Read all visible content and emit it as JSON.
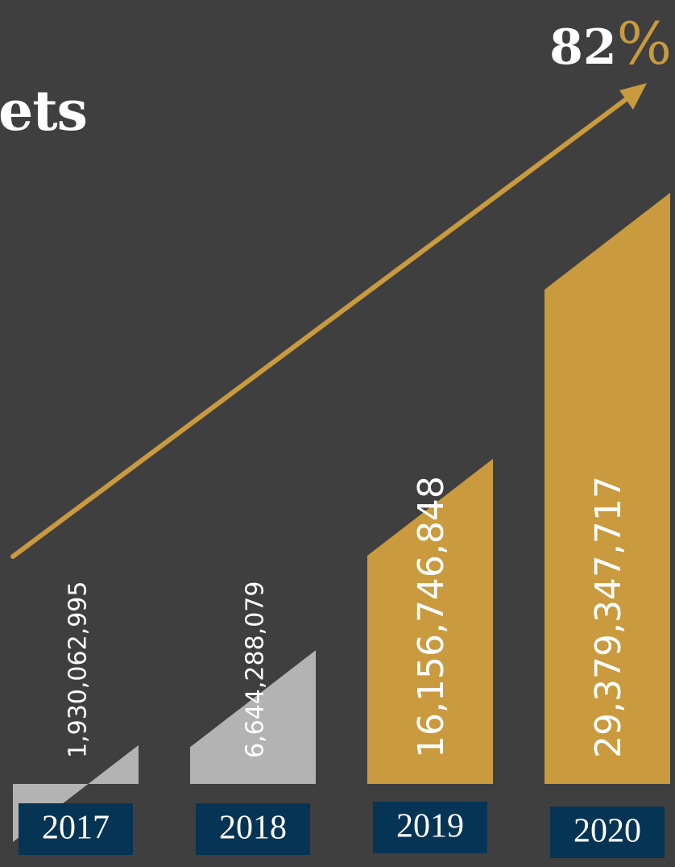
{
  "title_fragment": "ets",
  "growth": {
    "value": "82",
    "unit": "%"
  },
  "colors": {
    "background": "#3f3f3f",
    "past_bar": "#b3b3b3",
    "current_bar": "#c99a3e",
    "arrow": "#c99a3e",
    "year_box": "#063454"
  },
  "chart_data": {
    "type": "bar",
    "categories": [
      "2017",
      "2018",
      "2019",
      "2020"
    ],
    "values": [
      1930062995,
      6644288079,
      16156746848,
      29379347717
    ],
    "data_labels": [
      "1,930,062,995",
      "6,644,288,079",
      "16,156,746,848",
      "29,379,347,717"
    ],
    "highlight": [
      "past",
      "past",
      "current",
      "current"
    ],
    "growth_annotation": "82%",
    "ylim": [
      0,
      30000000000
    ],
    "grid": false
  }
}
